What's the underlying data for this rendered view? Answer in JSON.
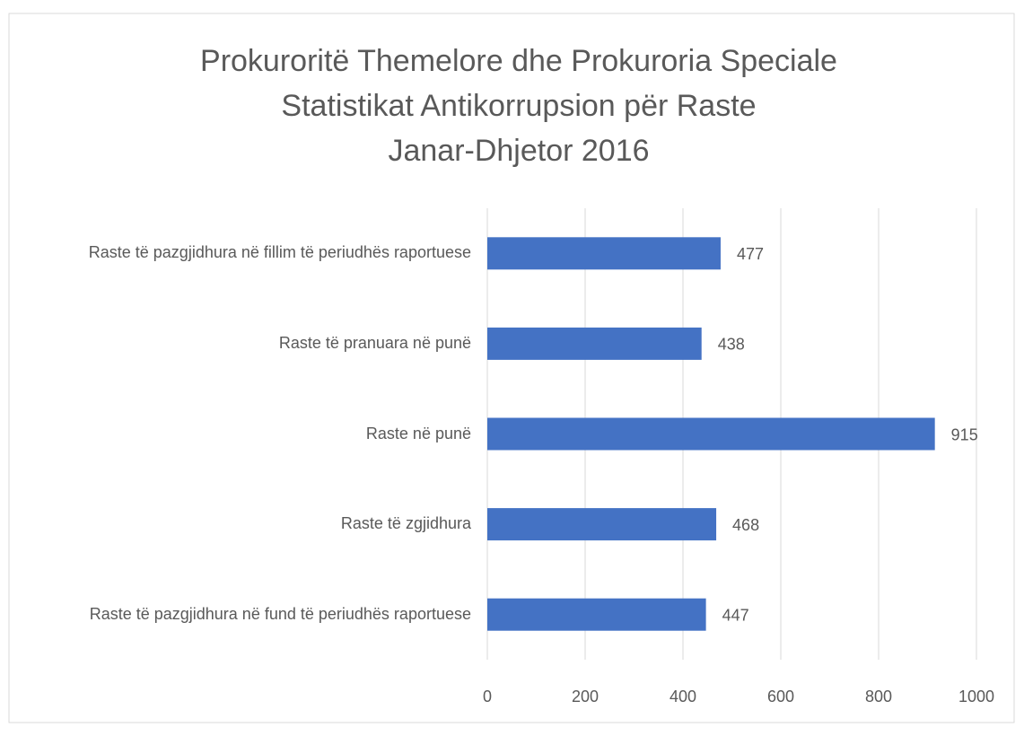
{
  "chart_data": {
    "type": "bar",
    "orientation": "horizontal",
    "title": [
      "Prokuroritë Themelore dhe Prokuroria Speciale",
      "Statistikat Antikorrupsion për Raste",
      "Janar-Dhjetor 2016"
    ],
    "categories": [
      "Raste të pazgjidhura në fillim të periudhës raportuese",
      "Raste të pranuara në punë",
      "Raste në punë",
      "Raste të zgjidhura",
      "Raste të pazgjidhura në fund të periudhës raportuese"
    ],
    "values": [
      477,
      438,
      915,
      468,
      447
    ],
    "color": "#4472c4",
    "xlim": [
      0,
      1000
    ],
    "xticks": [
      0,
      200,
      400,
      600,
      800,
      1000
    ],
    "grid": true
  }
}
